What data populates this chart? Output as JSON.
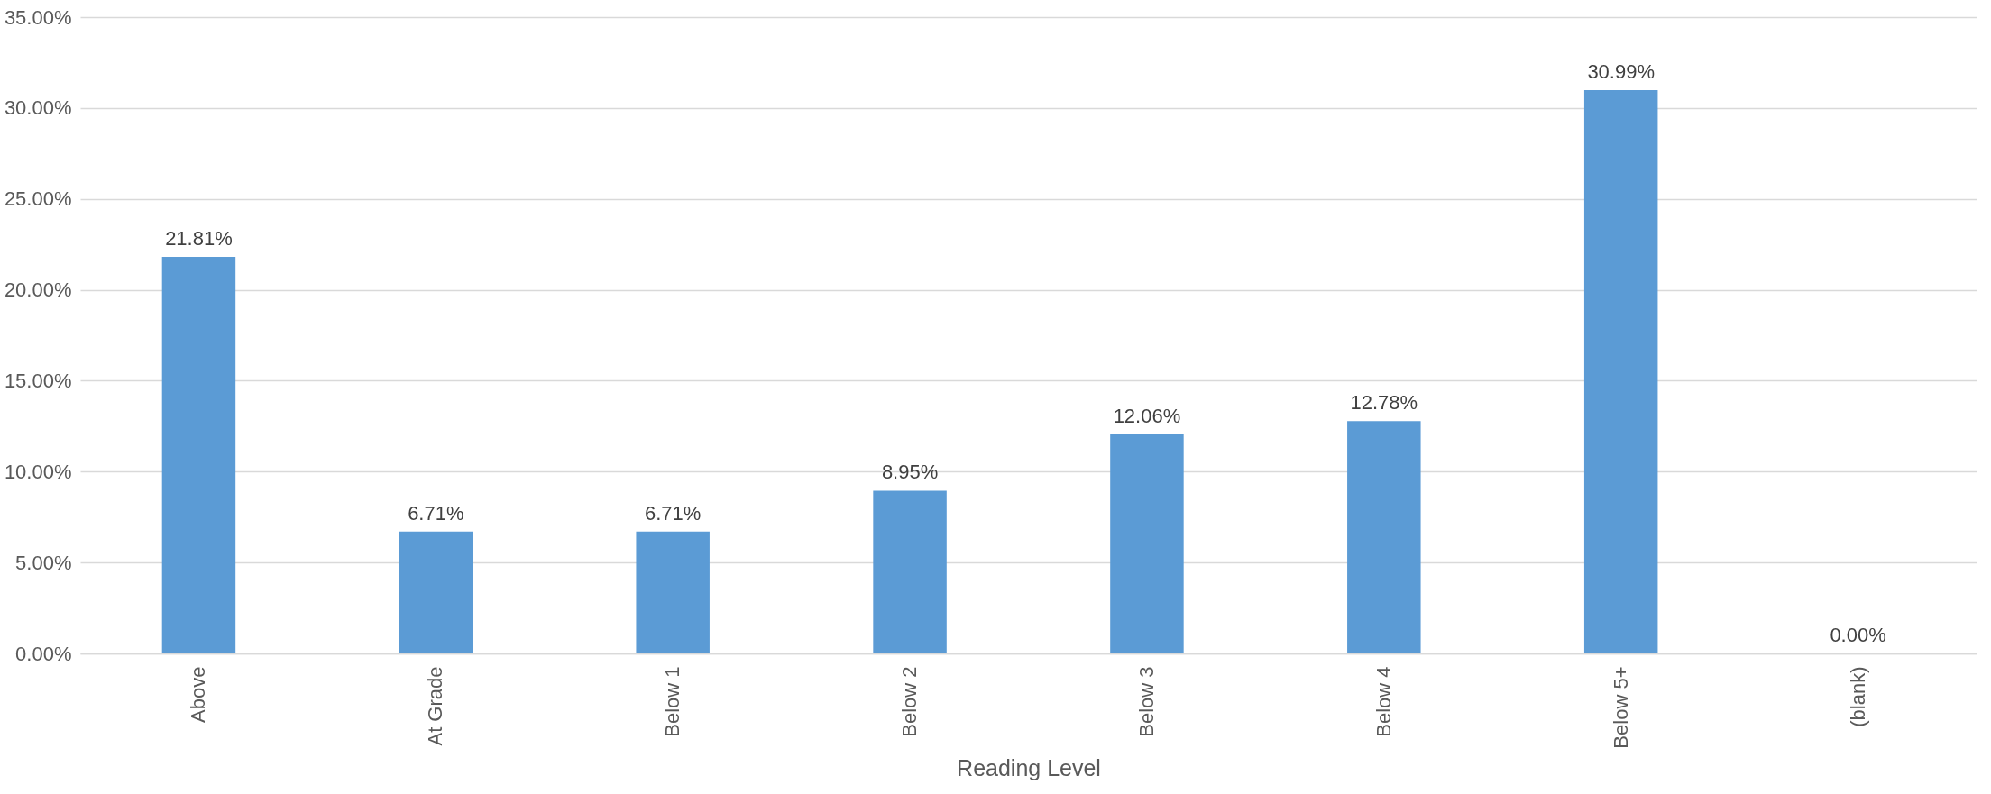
{
  "chart_data": {
    "type": "bar",
    "xlabel": "Reading Level",
    "categories": [
      "Above",
      "At Grade",
      "Below 1",
      "Below 2",
      "Below 3",
      "Below 4",
      "Below 5+",
      "(blank)"
    ],
    "values": [
      21.81,
      6.71,
      6.71,
      8.95,
      12.06,
      12.78,
      30.99,
      0.0
    ],
    "value_labels": [
      "21.81%",
      "6.71%",
      "6.71%",
      "8.95%",
      "12.06%",
      "12.78%",
      "30.99%",
      "0.00%"
    ],
    "color": "#5b9bd5",
    "ylim": [
      0,
      35
    ],
    "yticks": [
      {
        "value": 0,
        "label": "0.00%"
      },
      {
        "value": 5,
        "label": "5.00%"
      },
      {
        "value": 10,
        "label": "10.00%"
      },
      {
        "value": 15,
        "label": "15.00%"
      },
      {
        "value": 20,
        "label": "20.00%"
      },
      {
        "value": 25,
        "label": "25.00%"
      },
      {
        "value": 30,
        "label": "30.00%"
      },
      {
        "value": 35,
        "label": "35.00%"
      }
    ],
    "grid": "y"
  }
}
